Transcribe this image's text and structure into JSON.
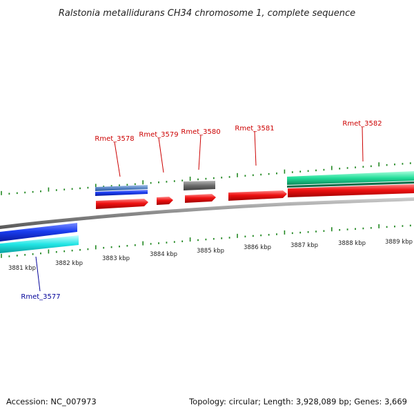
{
  "title": "Ralstonia metallidurans CH34 chromosome 1, complete sequence",
  "footer": {
    "accession": "Accession: NC_007973",
    "summary": "Topology: circular; Length: 3,928,089 bp; Genes: 3,669"
  },
  "colors": {
    "plus_gene": "#1a3df0",
    "plus_gene_light": "#5a86c8",
    "plus_cds": "#ee1111",
    "plus_other": "#6b6b6b",
    "plus_teal": "#22dd99",
    "minus_gene": "#1a28e6",
    "minus_cds": "#22e5e5",
    "tick": "#228822",
    "label_plus": "#cc0000",
    "label_minus": "#000099",
    "backbone": "#8a8a8a"
  },
  "kbp_labels": [
    "3881 kbp",
    "3882 kbp",
    "3883 kbp",
    "3884 kbp",
    "3885 kbp",
    "3886 kbp",
    "3887 kbp",
    "3888 kbp",
    "3889 kbp"
  ],
  "gene_labels_plus": [
    "Rmet_3578",
    "Rmet_3579",
    "Rmet_3580",
    "Rmet_3581",
    "Rmet_3582"
  ],
  "gene_labels_minus": [
    "Rmet_3577"
  ]
}
